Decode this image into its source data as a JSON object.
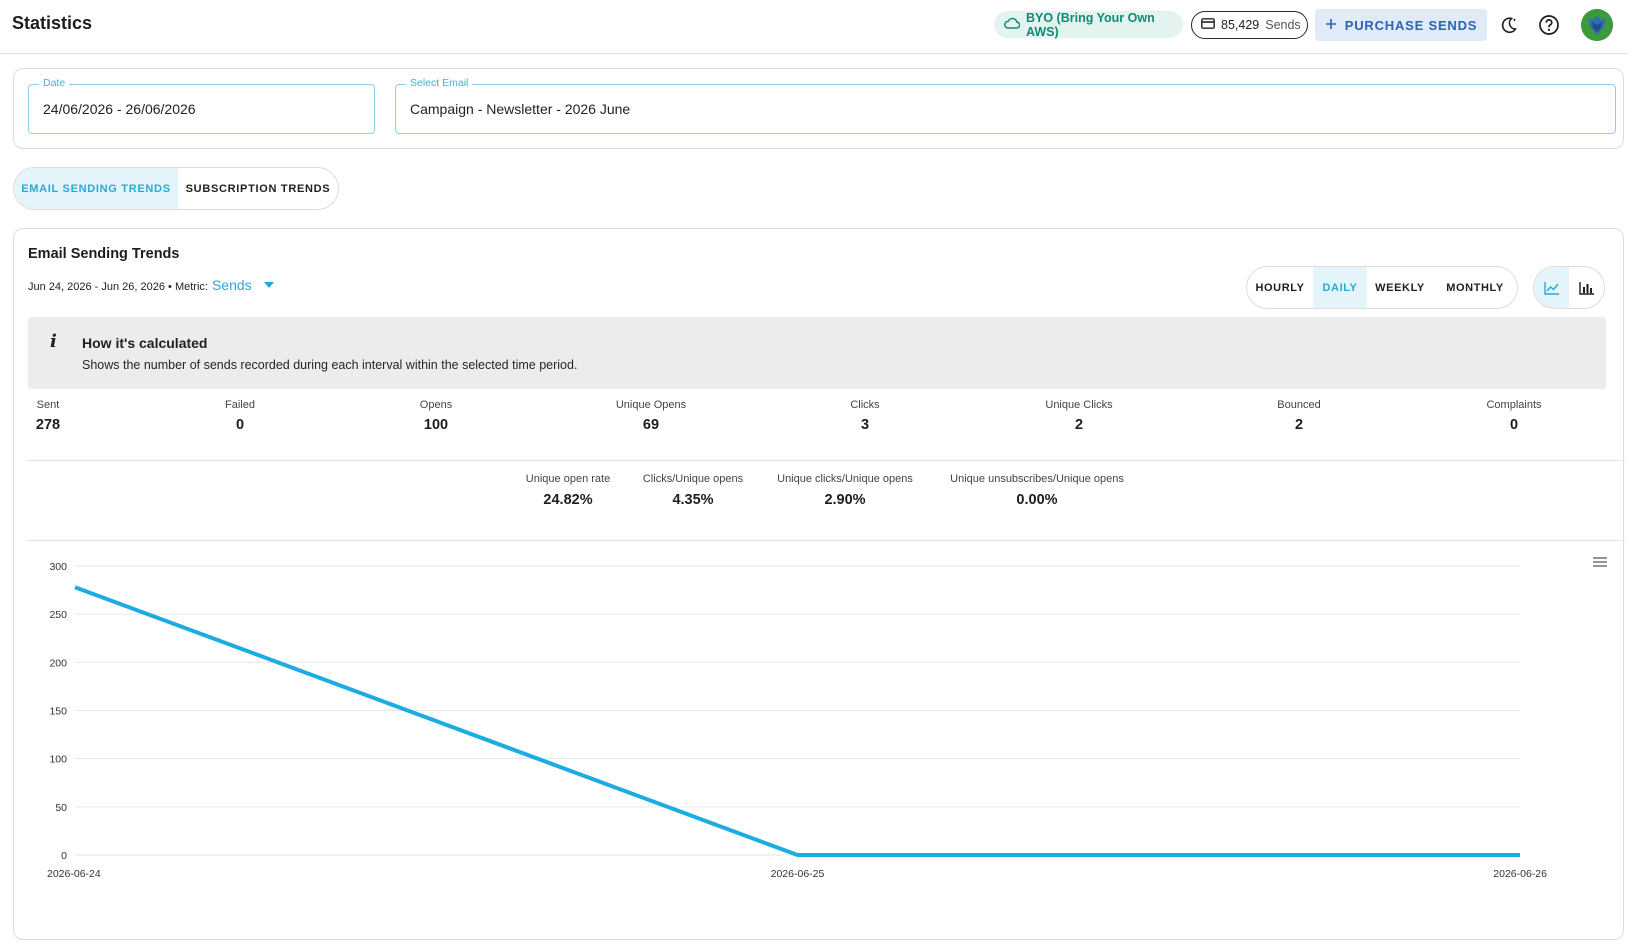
{
  "header": {
    "title": "Statistics",
    "byo_label": "BYO (Bring Your Own AWS)",
    "sends_count": "85,429",
    "sends_unit": "Sends",
    "purchase_label": "PURCHASE SENDS"
  },
  "filters": {
    "date_label": "Date",
    "date_value": "24/06/2026 - 26/06/2026",
    "email_label": "Select Email",
    "email_value": "Campaign - Newsletter - 2026 June"
  },
  "tabs": {
    "sending": "EMAIL SENDING TRENDS",
    "subscription": "SUBSCRIPTION TRENDS"
  },
  "card": {
    "title": "Email Sending Trends",
    "range": "Jun 24, 2026 - Jun 26, 2026 • Metric:",
    "metric": "Sends",
    "intervals": {
      "hourly": "HOURLY",
      "daily": "DAILY",
      "weekly": "WEEKLY",
      "monthly": "MONTHLY"
    },
    "info_title": "How it's calculated",
    "info_text": "Shows the number of sends recorded during each interval within the selected time period."
  },
  "stats": [
    {
      "label": "Sent",
      "value": "278"
    },
    {
      "label": "Failed",
      "value": "0"
    },
    {
      "label": "Opens",
      "value": "100"
    },
    {
      "label": "Unique Opens",
      "value": "69"
    },
    {
      "label": "Clicks",
      "value": "3"
    },
    {
      "label": "Unique Clicks",
      "value": "2"
    },
    {
      "label": "Bounced",
      "value": "2"
    },
    {
      "label": "Complaints",
      "value": "0"
    }
  ],
  "rates": [
    {
      "label": "Unique open rate",
      "value": "24.82%"
    },
    {
      "label": "Clicks/Unique opens",
      "value": "4.35%"
    },
    {
      "label": "Unique clicks/Unique opens",
      "value": "2.90%"
    },
    {
      "label": "Unique unsubscribes/Unique opens",
      "value": "0.00%"
    }
  ],
  "colors": {
    "accent": "#1cabe3",
    "teal": "#0f8b74",
    "purchase": "#2c63b4"
  },
  "chart_data": {
    "type": "line",
    "x": [
      "2026-06-24",
      "2026-06-25",
      "2026-06-26"
    ],
    "series": [
      {
        "values": [
          278,
          0,
          0
        ]
      }
    ],
    "ylim": [
      0,
      300
    ],
    "yticks": [
      0,
      50,
      100,
      150,
      200,
      250,
      300
    ],
    "grid": true,
    "title": "",
    "xlabel": "",
    "ylabel": ""
  }
}
